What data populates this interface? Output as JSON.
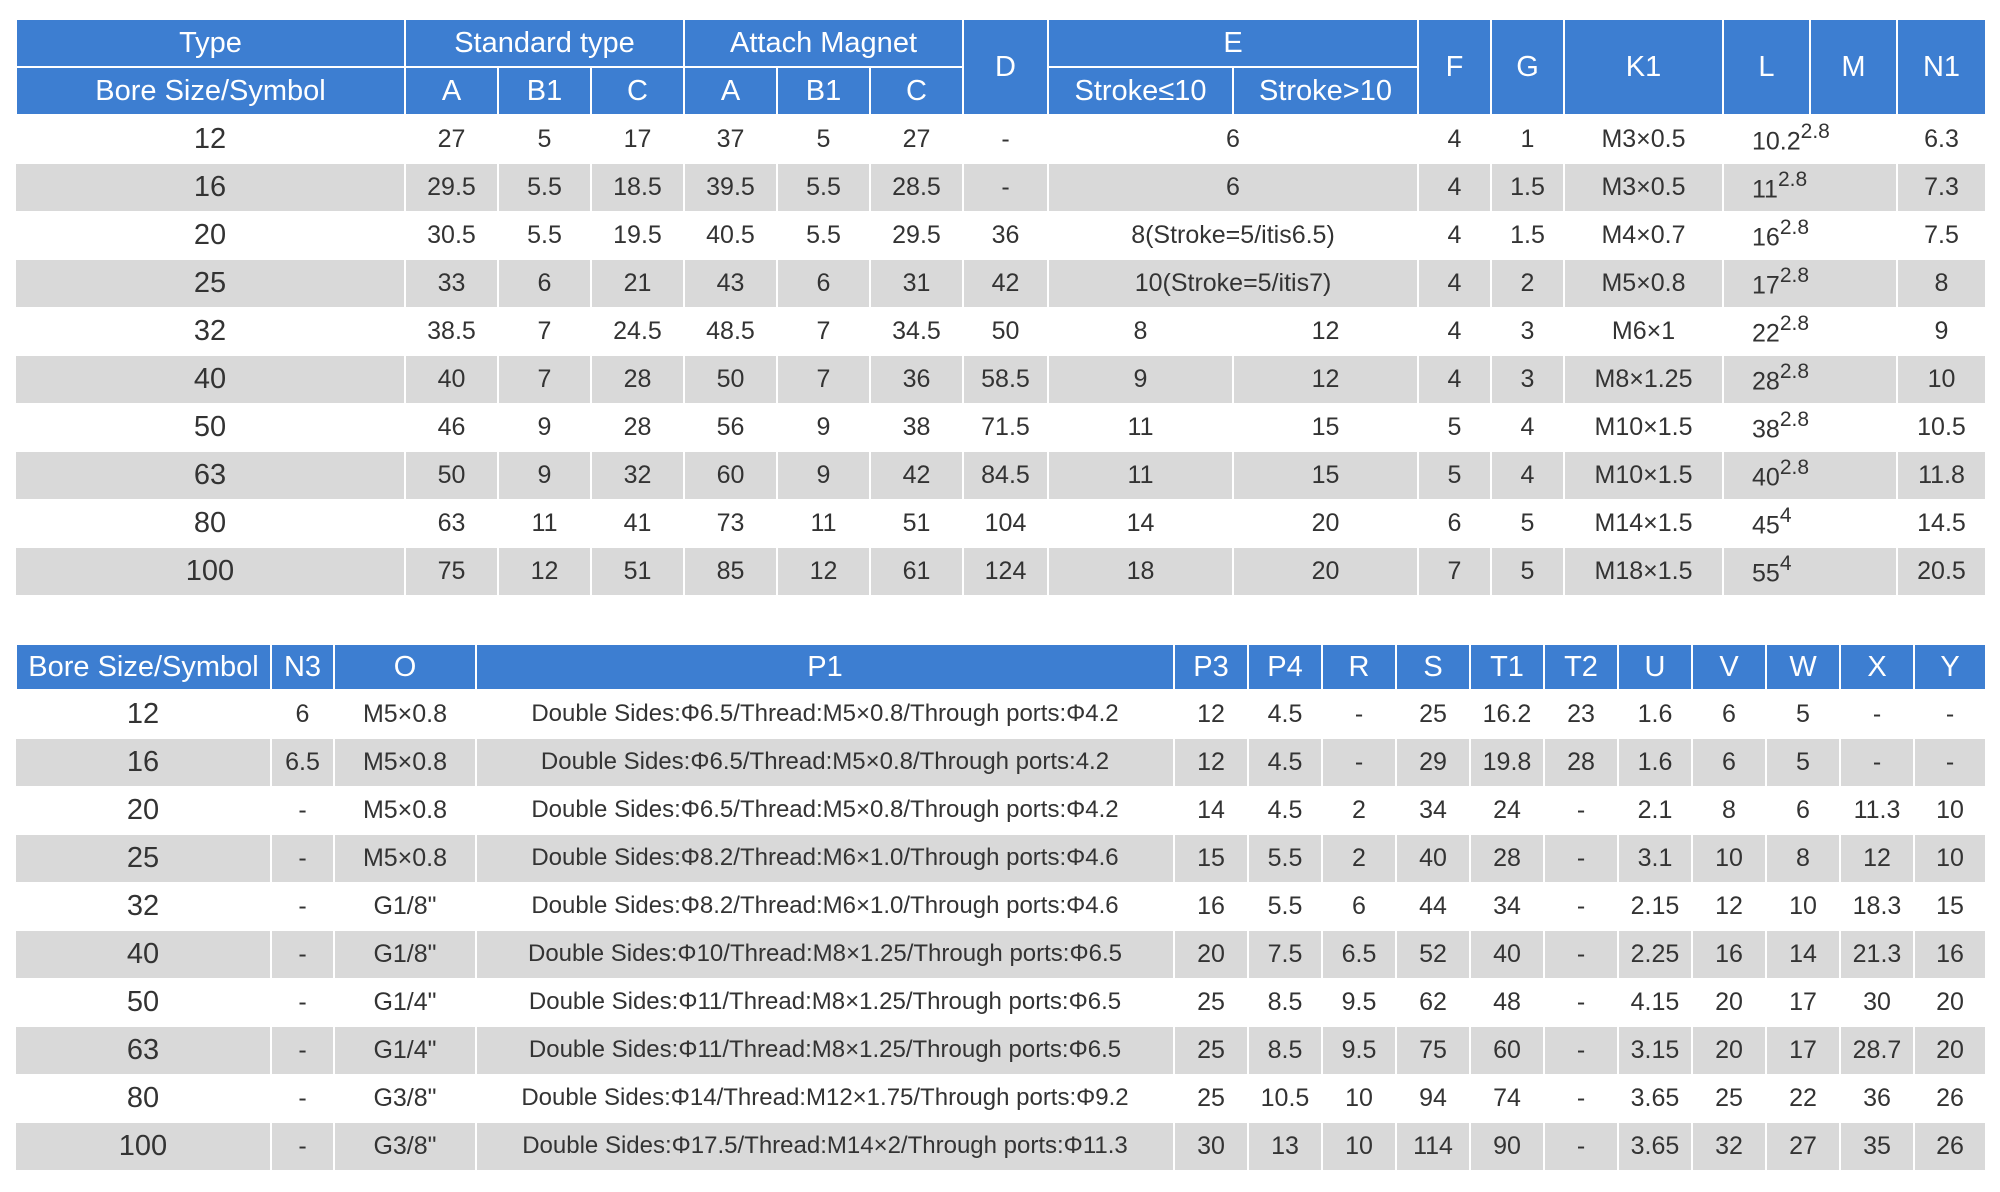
{
  "table1": {
    "header_row1": {
      "type": "Type",
      "standard_type": "Standard type",
      "attach_magnet": "Attach Magnet",
      "d": "D",
      "e": "E",
      "f": "F",
      "g": "G",
      "k1": "K1",
      "l": "L",
      "m": "M",
      "n1": "N1"
    },
    "header_row2": {
      "bore_size_symbol": "Bore Size/Symbol",
      "std_a": "A",
      "std_b1": "B1",
      "std_c": "C",
      "mag_a": "A",
      "mag_b1": "B1",
      "mag_c": "C",
      "e_stroke_le10": "Stroke≤10",
      "e_stroke_gt10": "Stroke>10"
    },
    "rows": [
      {
        "bore": "12",
        "std_a": "27",
        "std_b1": "5",
        "std_c": "17",
        "mag_a": "37",
        "mag_b1": "5",
        "mag_c": "27",
        "d": "-",
        "e_merged": true,
        "e": "6",
        "e1": "",
        "e2": "",
        "f": "4",
        "g": "1",
        "k1": "M3×0.5",
        "l": "10.2",
        "m_sup": "2.8",
        "n1": "6.3"
      },
      {
        "bore": "16",
        "std_a": "29.5",
        "std_b1": "5.5",
        "std_c": "18.5",
        "mag_a": "39.5",
        "mag_b1": "5.5",
        "mag_c": "28.5",
        "d": "-",
        "e_merged": true,
        "e": "6",
        "e1": "",
        "e2": "",
        "f": "4",
        "g": "1.5",
        "k1": "M3×0.5",
        "l": "11",
        "m_sup": "2.8",
        "n1": "7.3"
      },
      {
        "bore": "20",
        "std_a": "30.5",
        "std_b1": "5.5",
        "std_c": "19.5",
        "mag_a": "40.5",
        "mag_b1": "5.5",
        "mag_c": "29.5",
        "d": "36",
        "e_merged": true,
        "e": "8(Stroke=5/itis6.5)",
        "e1": "",
        "e2": "",
        "f": "4",
        "g": "1.5",
        "k1": "M4×0.7",
        "l": "16",
        "m_sup": "2.8",
        "n1": "7.5"
      },
      {
        "bore": "25",
        "std_a": "33",
        "std_b1": "6",
        "std_c": "21",
        "mag_a": "43",
        "mag_b1": "6",
        "mag_c": "31",
        "d": "42",
        "e_merged": true,
        "e": "10(Stroke=5/itis7)",
        "e1": "",
        "e2": "",
        "f": "4",
        "g": "2",
        "k1": "M5×0.8",
        "l": "17",
        "m_sup": "2.8",
        "n1": "8"
      },
      {
        "bore": "32",
        "std_a": "38.5",
        "std_b1": "7",
        "std_c": "24.5",
        "mag_a": "48.5",
        "mag_b1": "7",
        "mag_c": "34.5",
        "d": "50",
        "e_merged": false,
        "e": "",
        "e1": "8",
        "e2": "12",
        "f": "4",
        "g": "3",
        "k1": "M6×1",
        "l": "22",
        "m_sup": "2.8",
        "n1": "9"
      },
      {
        "bore": "40",
        "std_a": "40",
        "std_b1": "7",
        "std_c": "28",
        "mag_a": "50",
        "mag_b1": "7",
        "mag_c": "36",
        "d": "58.5",
        "e_merged": false,
        "e": "",
        "e1": "9",
        "e2": "12",
        "f": "4",
        "g": "3",
        "k1": "M8×1.25",
        "l": "28",
        "m_sup": "2.8",
        "n1": "10"
      },
      {
        "bore": "50",
        "std_a": "46",
        "std_b1": "9",
        "std_c": "28",
        "mag_a": "56",
        "mag_b1": "9",
        "mag_c": "38",
        "d": "71.5",
        "e_merged": false,
        "e": "",
        "e1": "11",
        "e2": "15",
        "f": "5",
        "g": "4",
        "k1": "M10×1.5",
        "l": "38",
        "m_sup": "2.8",
        "n1": "10.5"
      },
      {
        "bore": "63",
        "std_a": "50",
        "std_b1": "9",
        "std_c": "32",
        "mag_a": "60",
        "mag_b1": "9",
        "mag_c": "42",
        "d": "84.5",
        "e_merged": false,
        "e": "",
        "e1": "11",
        "e2": "15",
        "f": "5",
        "g": "4",
        "k1": "M10×1.5",
        "l": "40",
        "m_sup": "2.8",
        "n1": "11.8"
      },
      {
        "bore": "80",
        "std_a": "63",
        "std_b1": "11",
        "std_c": "41",
        "mag_a": "73",
        "mag_b1": "11",
        "mag_c": "51",
        "d": "104",
        "e_merged": false,
        "e": "",
        "e1": "14",
        "e2": "20",
        "f": "6",
        "g": "5",
        "k1": "M14×1.5",
        "l": "45",
        "m_sup": "4",
        "n1": "14.5"
      },
      {
        "bore": "100",
        "std_a": "75",
        "std_b1": "12",
        "std_c": "51",
        "mag_a": "85",
        "mag_b1": "12",
        "mag_c": "61",
        "d": "124",
        "e_merged": false,
        "e": "",
        "e1": "18",
        "e2": "20",
        "f": "7",
        "g": "5",
        "k1": "M18×1.5",
        "l": "55",
        "m_sup": "4",
        "n1": "20.5"
      }
    ]
  },
  "table2": {
    "headers": [
      "Bore Size/Symbol",
      "N3",
      "O",
      "P1",
      "P3",
      "P4",
      "R",
      "S",
      "T1",
      "T2",
      "U",
      "V",
      "W",
      "X",
      "Y"
    ],
    "rows": [
      {
        "bore": "12",
        "n3": "6",
        "o": "M5×0.8",
        "p1": "Double Sides:Φ6.5/Thread:M5×0.8/Through ports:Φ4.2",
        "p3": "12",
        "p4": "4.5",
        "r": "-",
        "s": "25",
        "t1": "16.2",
        "t2": "23",
        "u": "1.6",
        "v": "6",
        "w": "5",
        "x": "-",
        "y": "-"
      },
      {
        "bore": "16",
        "n3": "6.5",
        "o": "M5×0.8",
        "p1": "Double Sides:Φ6.5/Thread:M5×0.8/Through ports:4.2",
        "p3": "12",
        "p4": "4.5",
        "r": "-",
        "s": "29",
        "t1": "19.8",
        "t2": "28",
        "u": "1.6",
        "v": "6",
        "w": "5",
        "x": "-",
        "y": "-"
      },
      {
        "bore": "20",
        "n3": "-",
        "o": "M5×0.8",
        "p1": "Double Sides:Φ6.5/Thread:M5×0.8/Through ports:Φ4.2",
        "p3": "14",
        "p4": "4.5",
        "r": "2",
        "s": "34",
        "t1": "24",
        "t2": "-",
        "u": "2.1",
        "v": "8",
        "w": "6",
        "x": "11.3",
        "y": "10"
      },
      {
        "bore": "25",
        "n3": "-",
        "o": "M5×0.8",
        "p1": "Double Sides:Φ8.2/Thread:M6×1.0/Through ports:Φ4.6",
        "p3": "15",
        "p4": "5.5",
        "r": "2",
        "s": "40",
        "t1": "28",
        "t2": "-",
        "u": "3.1",
        "v": "10",
        "w": "8",
        "x": "12",
        "y": "10"
      },
      {
        "bore": "32",
        "n3": "-",
        "o": "G1/8\"",
        "p1": "Double Sides:Φ8.2/Thread:M6×1.0/Through ports:Φ4.6",
        "p3": "16",
        "p4": "5.5",
        "r": "6",
        "s": "44",
        "t1": "34",
        "t2": "-",
        "u": "2.15",
        "v": "12",
        "w": "10",
        "x": "18.3",
        "y": "15"
      },
      {
        "bore": "40",
        "n3": "-",
        "o": "G1/8\"",
        "p1": "Double Sides:Φ10/Thread:M8×1.25/Through ports:Φ6.5",
        "p3": "20",
        "p4": "7.5",
        "r": "6.5",
        "s": "52",
        "t1": "40",
        "t2": "-",
        "u": "2.25",
        "v": "16",
        "w": "14",
        "x": "21.3",
        "y": "16"
      },
      {
        "bore": "50",
        "n3": "-",
        "o": "G1/4\"",
        "p1": "Double Sides:Φ11/Thread:M8×1.25/Through ports:Φ6.5",
        "p3": "25",
        "p4": "8.5",
        "r": "9.5",
        "s": "62",
        "t1": "48",
        "t2": "-",
        "u": "4.15",
        "v": "20",
        "w": "17",
        "x": "30",
        "y": "20"
      },
      {
        "bore": "63",
        "n3": "-",
        "o": "G1/4\"",
        "p1": "Double Sides:Φ11/Thread:M8×1.25/Through ports:Φ6.5",
        "p3": "25",
        "p4": "8.5",
        "r": "9.5",
        "s": "75",
        "t1": "60",
        "t2": "-",
        "u": "3.15",
        "v": "20",
        "w": "17",
        "x": "28.7",
        "y": "20"
      },
      {
        "bore": "80",
        "n3": "-",
        "o": "G3/8\"",
        "p1": "Double Sides:Φ14/Thread:M12×1.75/Through ports:Φ9.2",
        "p3": "25",
        "p4": "10.5",
        "r": "10",
        "s": "94",
        "t1": "74",
        "t2": "-",
        "u": "3.65",
        "v": "25",
        "w": "22",
        "x": "36",
        "y": "26"
      },
      {
        "bore": "100",
        "n3": "-",
        "o": "G3/8\"",
        "p1": "Double Sides:Φ17.5/Thread:M14×2/Through ports:Φ11.3",
        "p3": "30",
        "p4": "13",
        "r": "10",
        "s": "114",
        "t1": "90",
        "t2": "-",
        "u": "3.65",
        "v": "32",
        "w": "27",
        "x": "35",
        "y": "26"
      }
    ]
  },
  "colors": {
    "header_bg": "#3d7ed1",
    "header_text": "#ffffff",
    "row_alt_bg": "#d9d9d9",
    "row_bg": "#ffffff",
    "text": "#333333"
  }
}
